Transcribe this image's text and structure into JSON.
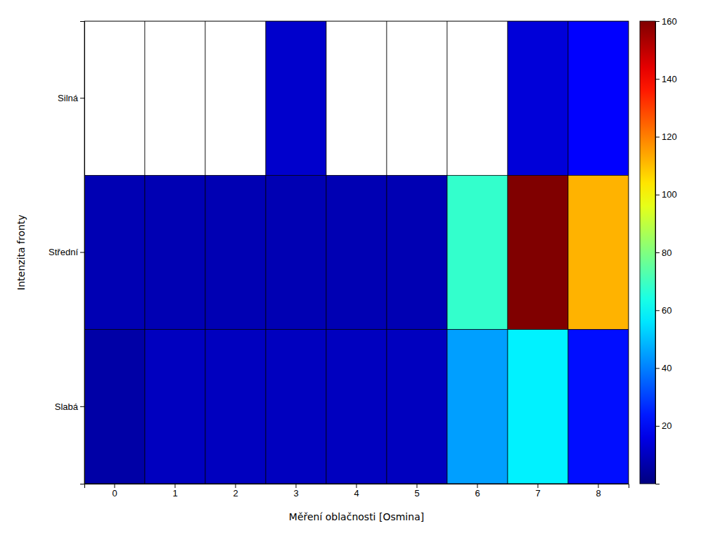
{
  "chart_data": {
    "type": "heatmap",
    "categories": [
      "0",
      "1",
      "2",
      "3",
      "4",
      "5",
      "6",
      "7",
      "8"
    ],
    "y_categories": [
      "Silná",
      "Střední",
      "Slabá"
    ],
    "values": [
      [
        0,
        0,
        0,
        12,
        0,
        0,
        0,
        14,
        20
      ],
      [
        8,
        8,
        8,
        8,
        8,
        8,
        68,
        160,
        112
      ],
      [
        6,
        10,
        10,
        10,
        10,
        10,
        45,
        58,
        22
      ]
    ],
    "xlabel": "Měření oblačnosti [Osmina]",
    "ylabel": "Intenzita fronty",
    "colorbar_range": [
      0,
      160
    ],
    "colorbar_ticks": [
      20,
      40,
      60,
      80,
      100,
      120,
      140,
      160
    ]
  }
}
